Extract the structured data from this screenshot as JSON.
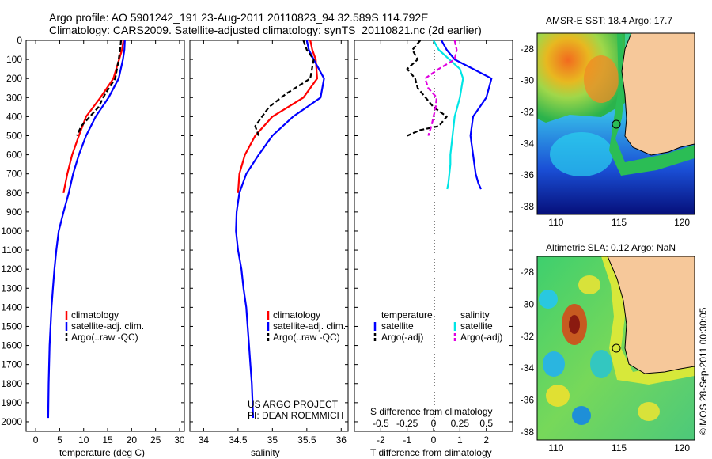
{
  "header": {
    "line1": "Argo profile: AO 5901242_191 23-Aug-2011 20110823_94 32.589S 114.792E",
    "line2": "Climatology: CARS2009. Satellite-adjusted climatology: synTS_20110821.nc (2d earlier)"
  },
  "depth_ticks": [
    "0",
    "100",
    "200",
    "300",
    "400",
    "500",
    "600",
    "700",
    "800",
    "900",
    "1000",
    "1100",
    "1200",
    "1300",
    "1400",
    "1500",
    "1600",
    "1700",
    "1800",
    "1900",
    "2000"
  ],
  "legend": {
    "climatology": "climatology",
    "satellite_adj": "satellite-adj. clim.",
    "argo_raw": "Argo(..raw -QC)",
    "temperature_head": "temperature",
    "salinity_head": "salinity",
    "satellite": "satellite",
    "argo_adj": "Argo(-adj)"
  },
  "credits": {
    "project": "US ARGO PROJECT",
    "pi": "PI: DEAN ROEMMICH"
  },
  "maps": {
    "sst_title": "AMSR-E SST: 18.4 Argo: 17.7",
    "sla_title": "Altimetric SLA: 0.12 Argo: NaN",
    "lat_ticks": [
      "-28",
      "-30",
      "-32",
      "-34",
      "-36",
      "-38"
    ],
    "lon_ticks": [
      "110",
      "115",
      "120"
    ]
  },
  "stamp": "©IMOS 28-Sep-2011 00:30:05",
  "colors": {
    "climatology": "#ff0000",
    "satellite": "#0000ff",
    "argo": "#000000",
    "salinity_sat": "#00e5e5",
    "salinity_argo": "#e000e0",
    "land": "#f6c89a"
  },
  "chart_data": [
    {
      "type": "line",
      "xlabel": "temperature (deg C)",
      "ylabel": "",
      "xlim": [
        -2,
        31
      ],
      "ylim": [
        2050,
        0
      ],
      "x_ticks": [
        "0",
        "5",
        "10",
        "15",
        "20",
        "25",
        "30"
      ],
      "series": [
        {
          "name": "climatology",
          "x": [
            18.3,
            18.0,
            17.4,
            16.2,
            13.5,
            10.5,
            9.0,
            7.6,
            6.6,
            5.8
          ],
          "y": [
            0,
            50,
            100,
            200,
            300,
            400,
            500,
            600,
            700,
            800
          ]
        },
        {
          "name": "satellite-adj. clim.",
          "x": [
            18.6,
            18.5,
            18.2,
            17.3,
            15.2,
            12.5,
            10.5,
            9.0,
            7.8,
            6.9,
            5.8,
            4.8,
            4.3,
            3.9,
            3.6,
            3.3,
            3.1,
            2.9,
            2.8,
            2.7,
            2.6
          ],
          "y": [
            0,
            50,
            100,
            200,
            300,
            400,
            500,
            600,
            700,
            800,
            900,
            1000,
            1100,
            1200,
            1300,
            1400,
            1500,
            1600,
            1700,
            1800,
            1980
          ]
        },
        {
          "name": "Argo(..raw -QC)",
          "x": [
            17.8,
            17.6,
            17.3,
            16.6,
            14.5,
            13.1,
            9.5,
            8.6
          ],
          "y": [
            0,
            50,
            100,
            200,
            280,
            350,
            450,
            500
          ]
        }
      ]
    },
    {
      "type": "line",
      "xlabel": "salinity",
      "ylabel": "",
      "xlim": [
        33.8,
        36.1
      ],
      "ylim": [
        2050,
        0
      ],
      "x_ticks": [
        "34",
        "34.5",
        "35",
        "35.5",
        "36"
      ],
      "series": [
        {
          "name": "climatology",
          "x": [
            35.55,
            35.58,
            35.63,
            35.65,
            35.45,
            35.0,
            34.75,
            34.6,
            34.52,
            34.5
          ],
          "y": [
            0,
            50,
            100,
            200,
            300,
            400,
            500,
            600,
            700,
            800
          ]
        },
        {
          "name": "satellite-adj. clim.",
          "x": [
            35.5,
            35.53,
            35.6,
            35.75,
            35.7,
            35.3,
            35.0,
            34.8,
            34.62,
            34.52,
            34.48,
            34.47,
            34.5,
            34.55,
            34.58,
            34.62,
            34.64,
            34.66,
            34.68,
            34.7,
            34.72
          ],
          "y": [
            0,
            50,
            100,
            200,
            300,
            400,
            500,
            600,
            700,
            800,
            900,
            1000,
            1100,
            1200,
            1300,
            1400,
            1500,
            1600,
            1700,
            1800,
            1980
          ]
        },
        {
          "name": "Argo(..raw -QC)",
          "x": [
            35.45,
            35.5,
            35.6,
            35.55,
            35.2,
            34.95,
            34.75,
            34.8
          ],
          "y": [
            0,
            50,
            100,
            200,
            280,
            350,
            450,
            500
          ]
        }
      ]
    },
    {
      "type": "line",
      "xlabel": "T difference from climatology",
      "x2label": "S difference from climatology",
      "ylabel": "",
      "xlim": [
        -3,
        3
      ],
      "x2lim": [
        -0.75,
        0.75
      ],
      "ylim": [
        2050,
        0
      ],
      "x_ticks": [
        "-2",
        "-1",
        "0",
        "1",
        "2"
      ],
      "x2_ticks": [
        "-0.5",
        "-0.25",
        "0",
        "0.25",
        "0.5"
      ],
      "series": [
        {
          "name": "temperature satellite",
          "axis": "T",
          "x": [
            0.3,
            0.5,
            0.8,
            1.5,
            2.2,
            2.0,
            1.5,
            1.4,
            1.5,
            1.6,
            1.7,
            1.8
          ],
          "y": [
            0,
            50,
            100,
            150,
            200,
            300,
            400,
            500,
            600,
            700,
            750,
            780
          ]
        },
        {
          "name": "temperature Argo(-adj)",
          "axis": "T",
          "x": [
            -0.5,
            -0.8,
            -0.6,
            -1.0,
            -0.7,
            -0.6,
            -0.3,
            0.0,
            0.5,
            0.2,
            -0.5,
            -1.0
          ],
          "y": [
            0,
            50,
            100,
            150,
            200,
            250,
            300,
            350,
            400,
            450,
            470,
            500
          ]
        },
        {
          "name": "salinity satellite",
          "axis": "S",
          "x": [
            0.0,
            0.05,
            0.15,
            0.25,
            0.28,
            0.25,
            0.2,
            0.18,
            0.16,
            0.16,
            0.15,
            0.14,
            0.13
          ],
          "y": [
            0,
            50,
            100,
            150,
            200,
            300,
            400,
            500,
            600,
            650,
            700,
            750,
            780
          ]
        },
        {
          "name": "salinity Argo(-adj)",
          "axis": "S",
          "x": [
            0.2,
            0.22,
            0.2,
            0.05,
            -0.08,
            -0.05,
            0.03,
            0.02,
            0.0,
            -0.02,
            -0.05
          ],
          "y": [
            0,
            50,
            100,
            150,
            200,
            250,
            300,
            350,
            400,
            450,
            500
          ]
        }
      ]
    }
  ]
}
